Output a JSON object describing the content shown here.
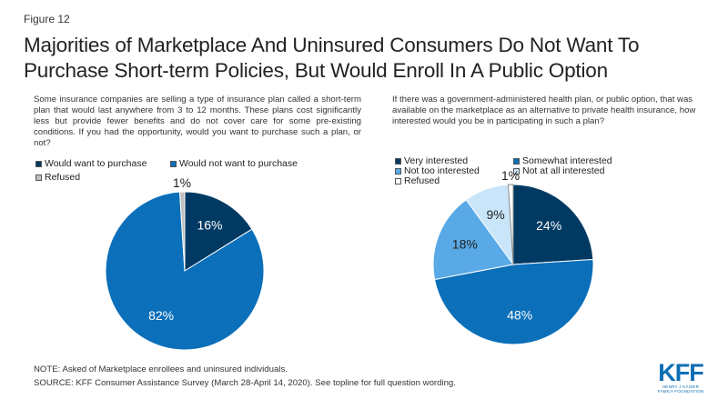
{
  "figure_label": "Figure 12",
  "title": "Majorities of Marketplace And Uninsured Consumers Do Not Want To Purchase Short-term Policies, But Would Enroll In A Public Option",
  "left_question": "Some insurance companies are selling a type of insurance plan called a short-term plan that would last anywhere from 3 to 12 months. These plans cost significantly less but provide fewer benefits and do not cover care for some pre-existing conditions. If you had the opportunity, would you want to purchase such a plan, or not?",
  "right_question": "If there was a government-administered health plan, or public option, that was available on the marketplace as an alternative to private health insurance, how interested would you be in participating in such a plan?",
  "chart_data": [
    {
      "type": "pie",
      "categories": [
        "Would want to purchase",
        "Would not want to purchase",
        "Refused"
      ],
      "values": [
        16,
        82,
        1
      ],
      "labels": [
        "16%",
        "82%",
        "1%"
      ],
      "colors": [
        "#003a63",
        "#0b6fba",
        "#c0c0c0"
      ],
      "label_colors": [
        "#ffffff",
        "#ffffff",
        "#222222"
      ]
    },
    {
      "type": "pie",
      "categories": [
        "Very interested",
        "Somewhat interested",
        "Not too interested",
        "Not at all interested",
        "Refused"
      ],
      "values": [
        24,
        48,
        18,
        9,
        1
      ],
      "labels": [
        "24%",
        "48%",
        "18%",
        "9%",
        "1%"
      ],
      "colors": [
        "#003a63",
        "#0b6fba",
        "#58a9e6",
        "#c8e5f9",
        "#ffffff"
      ],
      "label_colors": [
        "#ffffff",
        "#ffffff",
        "#222222",
        "#222222",
        "#222222"
      ]
    }
  ],
  "note": "NOTE: Asked of Marketplace enrollees and uninsured individuals.",
  "source": "SOURCE: KFF Consumer Assistance Survey (March 28-April 14, 2020). See topline for full question wording.",
  "logo": {
    "brand": "KFF",
    "line1": "HENRY J KAISER",
    "line2": "FAMILY FOUNDATION"
  }
}
